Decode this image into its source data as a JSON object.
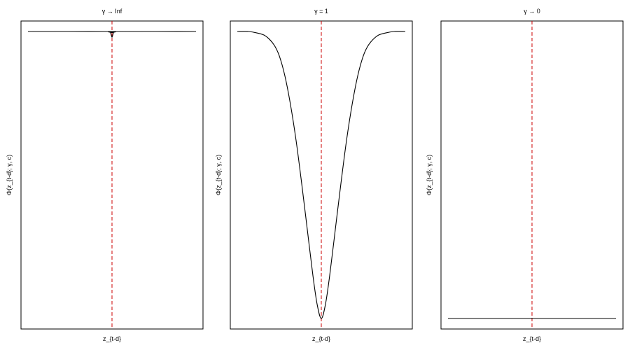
{
  "colors": {
    "curve": "#000000",
    "threshold_line": "#cc0000"
  },
  "chart_data": [
    {
      "type": "line",
      "title": "γ → Inf",
      "xlabel": "z_{t-d}",
      "ylabel": "Φ(z_{t-d}; γ, c)",
      "xlim": [
        -3,
        3
      ],
      "ylim": [
        0,
        1
      ],
      "x_ticks": [],
      "y_ticks": [],
      "threshold_x": 0,
      "series": [
        {
          "x": [
            -3,
            -0.1,
            -0.05,
            -0.02,
            0,
            0.02,
            0.05,
            0.1,
            3
          ],
          "values": [
            1,
            1,
            0.995,
            0.985,
            0.98,
            0.985,
            0.995,
            1,
            1
          ]
        }
      ]
    },
    {
      "type": "line",
      "title": "γ = 1",
      "xlabel": "z_{t-d}",
      "ylabel": "Φ(z_{t-d}; γ, c)",
      "xlim": [
        -3,
        3
      ],
      "ylim": [
        0,
        1
      ],
      "x_ticks": [],
      "y_ticks": [],
      "threshold_x": 0,
      "series": [
        {
          "x": [
            -3,
            -2.6,
            -2.3,
            -2.0,
            -1.7,
            -1.5,
            -1.3,
            -1.1,
            -0.9,
            -0.7,
            -0.5,
            -0.3,
            -0.15,
            0,
            0.15,
            0.3,
            0.5,
            0.7,
            0.9,
            1.1,
            1.3,
            1.5,
            1.7,
            2.0,
            2.3,
            2.6,
            3
          ],
          "values": [
            1,
            1,
            0.995,
            0.985,
            0.955,
            0.915,
            0.845,
            0.745,
            0.62,
            0.47,
            0.31,
            0.15,
            0.05,
            0,
            0.05,
            0.15,
            0.31,
            0.47,
            0.62,
            0.745,
            0.845,
            0.915,
            0.955,
            0.985,
            0.995,
            1,
            1
          ]
        }
      ]
    },
    {
      "type": "line",
      "title": "γ → 0",
      "xlabel": "z_{t-d}",
      "ylabel": "Φ(z_{t-d}; γ, c)",
      "xlim": [
        -3,
        3
      ],
      "ylim": [
        0,
        1
      ],
      "x_ticks": [],
      "y_ticks": [],
      "threshold_x": 0,
      "series": [
        {
          "x": [
            -3,
            3
          ],
          "values": [
            0,
            0
          ]
        }
      ]
    }
  ]
}
